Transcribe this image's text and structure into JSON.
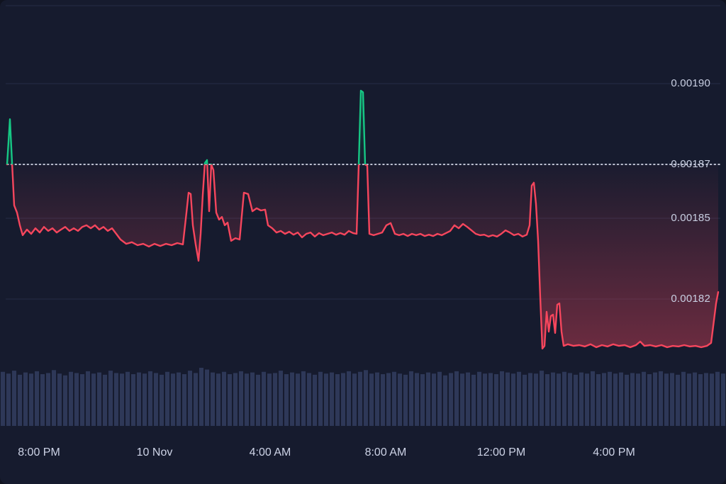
{
  "page": {
    "background": "#161b2e",
    "description": "Dark-theme cryptocurrency price line chart with volume bars"
  },
  "chart_data": {
    "type": "line",
    "title": "",
    "legend": false,
    "grid": true,
    "baseline_value": 0.00187,
    "colors": {
      "up": "#16c784",
      "down": "#f6465d",
      "grid": "#252c47",
      "volume": "#2e3858",
      "baseline_dots": "#e3e7f5",
      "bg": "#161b2e",
      "label": "#c9cfe2"
    },
    "y_axis": {
      "side": "right",
      "ticks": [
        {
          "label": "0.00190",
          "value": 0.0019
        },
        {
          "label": "0.00187",
          "value": 0.00187
        },
        {
          "label": "0.00185",
          "value": 0.00185
        },
        {
          "label": "0.00182",
          "value": 0.00182
        }
      ]
    },
    "x_axis": {
      "ticks": [
        {
          "label": "8:00 PM",
          "pos": 0.0537
        },
        {
          "label": "10 Nov",
          "pos": 0.2129
        },
        {
          "label": "4:00 AM",
          "pos": 0.3721
        },
        {
          "label": "8:00 AM",
          "pos": 0.5312
        },
        {
          "label": "12:00 PM",
          "pos": 0.6904
        },
        {
          "label": "4:00 PM",
          "pos": 0.8457
        }
      ]
    },
    "series": {
      "name": "price",
      "points": [
        [
          10,
          0.00187
        ],
        [
          14,
          0.0018868
        ],
        [
          17,
          0.0018705
        ],
        [
          20,
          0.0018548
        ],
        [
          24,
          0.0018521
        ],
        [
          28,
          0.0018474
        ],
        [
          32,
          0.0018437
        ],
        [
          38,
          0.0018458
        ],
        [
          44,
          0.0018442
        ],
        [
          50,
          0.0018463
        ],
        [
          56,
          0.0018447
        ],
        [
          62,
          0.0018468
        ],
        [
          68,
          0.0018453
        ],
        [
          74,
          0.0018463
        ],
        [
          80,
          0.0018447
        ],
        [
          86,
          0.0018458
        ],
        [
          92,
          0.0018468
        ],
        [
          98,
          0.0018453
        ],
        [
          104,
          0.0018463
        ],
        [
          110,
          0.0018453
        ],
        [
          116,
          0.0018468
        ],
        [
          122,
          0.0018474
        ],
        [
          128,
          0.0018463
        ],
        [
          134,
          0.0018474
        ],
        [
          140,
          0.0018458
        ],
        [
          146,
          0.0018468
        ],
        [
          152,
          0.0018453
        ],
        [
          158,
          0.0018463
        ],
        [
          164,
          0.0018442
        ],
        [
          170,
          0.0018421
        ],
        [
          178,
          0.0018405
        ],
        [
          186,
          0.0018411
        ],
        [
          194,
          0.00184
        ],
        [
          202,
          0.0018405
        ],
        [
          210,
          0.0018395
        ],
        [
          218,
          0.0018405
        ],
        [
          226,
          0.0018397
        ],
        [
          234,
          0.0018405
        ],
        [
          242,
          0.00184
        ],
        [
          250,
          0.0018408
        ],
        [
          258,
          0.0018403
        ],
        [
          263,
          0.0018521
        ],
        [
          266,
          0.0018595
        ],
        [
          269,
          0.001859
        ],
        [
          272,
          0.0018474
        ],
        [
          276,
          0.0018403
        ],
        [
          280,
          0.0018342
        ],
        [
          283,
          0.0018442
        ],
        [
          286,
          0.0018587
        ],
        [
          289,
          0.0018705
        ],
        [
          292,
          0.0018716
        ],
        [
          295,
          0.0018526
        ],
        [
          298,
          0.00187
        ],
        [
          301,
          0.0018679
        ],
        [
          305,
          0.0018521
        ],
        [
          309,
          0.0018495
        ],
        [
          313,
          0.0018505
        ],
        [
          317,
          0.0018474
        ],
        [
          321,
          0.0018484
        ],
        [
          326,
          0.0018416
        ],
        [
          332,
          0.0018426
        ],
        [
          338,
          0.0018421
        ],
        [
          344,
          0.0018595
        ],
        [
          350,
          0.001859
        ],
        [
          356,
          0.0018526
        ],
        [
          362,
          0.0018537
        ],
        [
          368,
          0.0018529
        ],
        [
          374,
          0.0018532
        ],
        [
          378,
          0.0018474
        ],
        [
          384,
          0.0018463
        ],
        [
          390,
          0.0018447
        ],
        [
          396,
          0.0018453
        ],
        [
          402,
          0.0018442
        ],
        [
          408,
          0.001845
        ],
        [
          414,
          0.0018439
        ],
        [
          420,
          0.0018447
        ],
        [
          426,
          0.0018429
        ],
        [
          432,
          0.0018442
        ],
        [
          438,
          0.0018447
        ],
        [
          444,
          0.0018432
        ],
        [
          450,
          0.0018445
        ],
        [
          456,
          0.0018437
        ],
        [
          462,
          0.0018442
        ],
        [
          468,
          0.0018447
        ],
        [
          474,
          0.0018439
        ],
        [
          480,
          0.0018445
        ],
        [
          486,
          0.0018439
        ],
        [
          492,
          0.0018453
        ],
        [
          498,
          0.0018445
        ],
        [
          503,
          0.0018442
        ],
        [
          506,
          0.00187
        ],
        [
          509,
          0.0018974
        ],
        [
          512,
          0.0018968
        ],
        [
          515,
          0.00187
        ],
        [
          518,
          0.0018695
        ],
        [
          521,
          0.0018442
        ],
        [
          527,
          0.0018437
        ],
        [
          533,
          0.0018442
        ],
        [
          539,
          0.0018447
        ],
        [
          545,
          0.0018474
        ],
        [
          551,
          0.0018482
        ],
        [
          557,
          0.0018442
        ],
        [
          563,
          0.0018437
        ],
        [
          569,
          0.0018442
        ],
        [
          575,
          0.0018434
        ],
        [
          581,
          0.0018442
        ],
        [
          587,
          0.0018437
        ],
        [
          593,
          0.0018442
        ],
        [
          599,
          0.0018434
        ],
        [
          605,
          0.0018439
        ],
        [
          611,
          0.0018434
        ],
        [
          617,
          0.0018442
        ],
        [
          623,
          0.0018437
        ],
        [
          629,
          0.0018445
        ],
        [
          635,
          0.0018453
        ],
        [
          641,
          0.0018474
        ],
        [
          647,
          0.0018463
        ],
        [
          653,
          0.0018479
        ],
        [
          659,
          0.0018468
        ],
        [
          665,
          0.0018455
        ],
        [
          671,
          0.0018442
        ],
        [
          677,
          0.0018437
        ],
        [
          683,
          0.0018439
        ],
        [
          689,
          0.0018432
        ],
        [
          695,
          0.0018437
        ],
        [
          701,
          0.0018432
        ],
        [
          707,
          0.0018442
        ],
        [
          713,
          0.0018455
        ],
        [
          719,
          0.0018447
        ],
        [
          725,
          0.0018437
        ],
        [
          731,
          0.0018442
        ],
        [
          737,
          0.0018432
        ],
        [
          743,
          0.0018439
        ],
        [
          747,
          0.0018474
        ],
        [
          750,
          0.0018621
        ],
        [
          753,
          0.0018632
        ],
        [
          756,
          0.0018553
        ],
        [
          759,
          0.0018416
        ],
        [
          762,
          0.0018205
        ],
        [
          765,
          0.0018016
        ],
        [
          768,
          0.0018026
        ],
        [
          771,
          0.0018153
        ],
        [
          774,
          0.0018079
        ],
        [
          777,
          0.0018137
        ],
        [
          780,
          0.0018142
        ],
        [
          783,
          0.0018074
        ],
        [
          786,
          0.0018179
        ],
        [
          789,
          0.0018184
        ],
        [
          792,
          0.0018079
        ],
        [
          795,
          0.0018026
        ],
        [
          801,
          0.0018032
        ],
        [
          809,
          0.0018026
        ],
        [
          817,
          0.0018029
        ],
        [
          825,
          0.0018024
        ],
        [
          833,
          0.0018032
        ],
        [
          841,
          0.0018021
        ],
        [
          849,
          0.0018029
        ],
        [
          857,
          0.0018024
        ],
        [
          865,
          0.0018032
        ],
        [
          873,
          0.0018026
        ],
        [
          881,
          0.0018029
        ],
        [
          889,
          0.0018021
        ],
        [
          897,
          0.0018029
        ],
        [
          903,
          0.0018042
        ],
        [
          909,
          0.0018026
        ],
        [
          917,
          0.0018029
        ],
        [
          925,
          0.0018024
        ],
        [
          933,
          0.0018029
        ],
        [
          941,
          0.0018021
        ],
        [
          949,
          0.0018026
        ],
        [
          957,
          0.0018024
        ],
        [
          965,
          0.0018029
        ],
        [
          973,
          0.0018024
        ],
        [
          981,
          0.0018026
        ],
        [
          989,
          0.0018021
        ],
        [
          997,
          0.0018026
        ],
        [
          1003,
          0.0018037
        ],
        [
          1007,
          0.0018121
        ],
        [
          1010,
          0.0018184
        ],
        [
          1013,
          0.0018226
        ]
      ]
    },
    "volume_bars": {
      "values": [
        0.93,
        0.9,
        0.95,
        0.88,
        0.92,
        0.9,
        0.94,
        0.89,
        0.91,
        0.96,
        0.9,
        0.87,
        0.93,
        0.91,
        0.89,
        0.94,
        0.9,
        0.92,
        0.88,
        0.95,
        0.91,
        0.9,
        0.93,
        0.89,
        0.92,
        0.9,
        0.94,
        0.91,
        0.88,
        0.93,
        0.9,
        0.92,
        0.89,
        0.95,
        0.91,
        1.0,
        0.97,
        0.92,
        0.9,
        0.93,
        0.89,
        0.91,
        0.94,
        0.9,
        0.92,
        0.88,
        0.93,
        0.9,
        0.91,
        0.95,
        0.89,
        0.92,
        0.9,
        0.94,
        0.91,
        0.88,
        0.93,
        0.9,
        0.92,
        0.89,
        0.91,
        0.94,
        0.9,
        0.93,
        0.96,
        0.9,
        0.92,
        0.89,
        0.91,
        0.93,
        0.9,
        0.88,
        0.94,
        0.91,
        0.89,
        0.92,
        0.9,
        0.93,
        0.87,
        0.91,
        0.94,
        0.9,
        0.92,
        0.88,
        0.93,
        0.9,
        0.91,
        0.89,
        0.94,
        0.92,
        0.9,
        0.93,
        0.88,
        0.91,
        0.9,
        0.95,
        0.89,
        0.92,
        0.9,
        0.93,
        0.91,
        0.88,
        0.92,
        0.9,
        0.94,
        0.89,
        0.91,
        0.93,
        0.9,
        0.92,
        0.88,
        0.91,
        0.9,
        0.93,
        0.89,
        0.92,
        0.94,
        0.9,
        0.91,
        0.88,
        0.93,
        0.9,
        0.92,
        0.89,
        0.91,
        0.9,
        0.93,
        0.9
      ]
    }
  }
}
